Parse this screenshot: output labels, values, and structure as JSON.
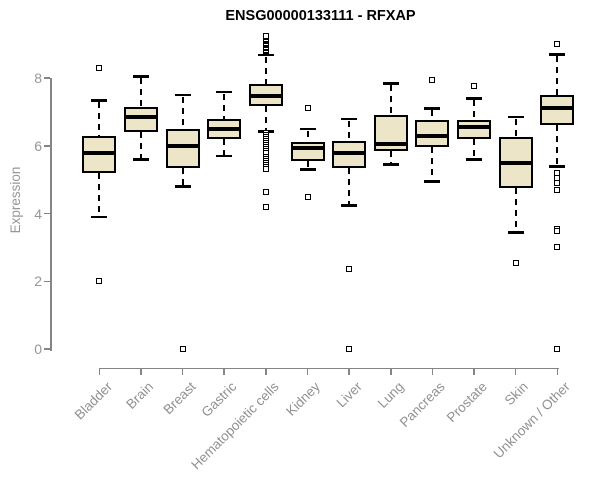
{
  "title": "ENSG00000133111 - RFXAP",
  "chart_data": {
    "type": "boxplot",
    "title": "ENSG00000133111 - RFXAP",
    "xlabel": "",
    "ylabel": "Expression",
    "yticks": [
      0,
      2,
      4,
      6,
      8
    ],
    "ylim": [
      0,
      9.4
    ],
    "grid": false,
    "categories": [
      "Bladder",
      "Brain",
      "Breast",
      "Gastric",
      "Hematopoietic cells",
      "Kidney",
      "Liver",
      "Lung",
      "Pancreas",
      "Prostate",
      "Skin",
      "Unknown / Other"
    ],
    "boxes": [
      {
        "category": "Bladder",
        "whisker_low": 3.9,
        "q1": 5.2,
        "median": 5.8,
        "q3": 6.3,
        "whisker_high": 7.35,
        "outliers": [
          8.3,
          2.0
        ]
      },
      {
        "category": "Brain",
        "whisker_low": 5.6,
        "q1": 6.4,
        "median": 6.85,
        "q3": 7.15,
        "whisker_high": 8.05,
        "outliers": []
      },
      {
        "category": "Breast",
        "whisker_low": 4.8,
        "q1": 5.35,
        "median": 6.0,
        "q3": 6.5,
        "whisker_high": 7.5,
        "outliers": [
          0
        ]
      },
      {
        "category": "Gastric",
        "whisker_low": 5.7,
        "q1": 6.2,
        "median": 6.5,
        "q3": 6.8,
        "whisker_high": 7.6,
        "outliers": []
      },
      {
        "category": "Hematopoietic cells",
        "whisker_low": 6.43,
        "q1": 7.18,
        "median": 7.48,
        "q3": 7.83,
        "whisker_high": 8.69,
        "outliers": [
          8.76,
          8.8,
          8.84,
          8.88,
          8.92,
          8.96,
          9.0,
          9.04,
          9.08,
          9.12,
          9.16,
          9.2,
          9.25,
          6.38,
          6.32,
          6.26,
          6.2,
          6.14,
          6.08,
          6.02,
          5.96,
          5.9,
          5.84,
          5.78,
          5.66,
          5.6,
          5.54,
          5.48,
          5.42,
          5.36,
          5.3,
          4.63,
          4.18
        ]
      },
      {
        "category": "Kidney",
        "whisker_low": 5.3,
        "q1": 5.55,
        "median": 5.92,
        "q3": 6.1,
        "whisker_high": 6.5,
        "outliers": [
          7.1,
          4.5
        ]
      },
      {
        "category": "Liver",
        "whisker_low": 4.25,
        "q1": 5.35,
        "median": 5.8,
        "q3": 6.15,
        "whisker_high": 6.8,
        "outliers": [
          2.35,
          0
        ]
      },
      {
        "category": "Lung",
        "whisker_low": 5.45,
        "q1": 5.85,
        "median": 6.05,
        "q3": 6.9,
        "whisker_high": 7.85,
        "outliers": []
      },
      {
        "category": "Pancreas",
        "whisker_low": 4.95,
        "q1": 5.95,
        "median": 6.3,
        "q3": 6.75,
        "whisker_high": 7.1,
        "outliers": [
          7.95
        ]
      },
      {
        "category": "Prostate",
        "whisker_low": 5.6,
        "q1": 6.2,
        "median": 6.55,
        "q3": 6.75,
        "whisker_high": 7.4,
        "outliers": [
          7.75
        ]
      },
      {
        "category": "Skin",
        "whisker_low": 3.45,
        "q1": 4.75,
        "median": 5.5,
        "q3": 6.25,
        "whisker_high": 6.85,
        "outliers": [
          2.55
        ]
      },
      {
        "category": "Unknown / Other",
        "whisker_low": 5.4,
        "q1": 6.6,
        "median": 7.1,
        "q3": 7.5,
        "whisker_high": 8.7,
        "outliers": [
          9.0,
          5.19,
          5.04,
          4.9,
          4.7,
          3.55,
          3.48,
          3.0,
          0
        ]
      }
    ],
    "colors": {
      "box_fill": "#ece5c8",
      "box_border": "#000000",
      "median": "#000000",
      "axis": "#858585",
      "tick_text": "#979797",
      "title_text": "#000000",
      "background": "#ffffff"
    }
  }
}
